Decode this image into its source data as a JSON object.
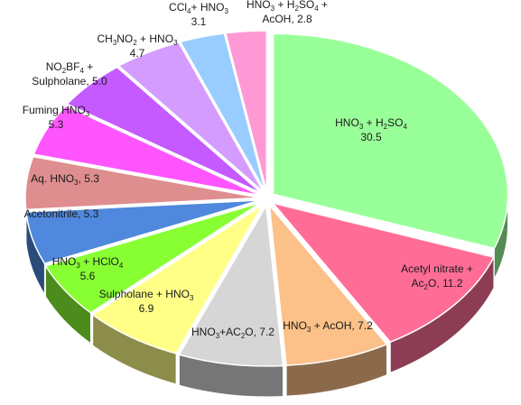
{
  "chart_data": {
    "type": "pie",
    "style": "3d-exploded-pie",
    "slices": [
      {
        "label": "HNO3 + H2SO4",
        "label_lines": [
          [
            "HNO",
            {
              "sub": "3"
            },
            " + H",
            {
              "sub": "2"
            },
            "SO",
            {
              "sub": "4"
            }
          ],
          [
            "30.5"
          ]
        ],
        "value": 30.5,
        "color": "#99ff99"
      },
      {
        "label": "Acetyl nitrate + Ac2O, 11.2",
        "label_lines": [
          [
            "Acetyl nitrate +"
          ],
          [
            "Ac",
            {
              "sub": "2"
            },
            "O, 11.2"
          ]
        ],
        "value": 11.2,
        "color": "#ff6d97"
      },
      {
        "label": "HNO3 + AcOH, 7.2",
        "label_lines": [
          [
            "HNO",
            {
              "sub": "3"
            },
            " + AcOH, 7.2"
          ]
        ],
        "value": 7.2,
        "color": "#fcc089"
      },
      {
        "label": "HNO3+AC2O, 7.2",
        "label_lines": [
          [
            "HNO",
            {
              "sub": "3"
            },
            "+AC",
            {
              "sub": "2"
            },
            "O, 7.2"
          ]
        ],
        "value": 7.2,
        "color": "#d6d6d6"
      },
      {
        "label": "Sulpholane + HNO3 6.9",
        "label_lines": [
          [
            "Sulpholane + HNO",
            {
              "sub": "3"
            }
          ],
          [
            "6.9"
          ]
        ],
        "value": 6.9,
        "color": "#ffff88"
      },
      {
        "label": "HNO3 + HClO4 5.6",
        "label_lines": [
          [
            "HNO",
            {
              "sub": "3"
            },
            " + HClO",
            {
              "sub": "4"
            }
          ],
          [
            "5.6"
          ]
        ],
        "value": 5.6,
        "color": "#88ff33"
      },
      {
        "label": "Acetonitrile, 5.3",
        "label_lines": [
          [
            "Acetonitrile, 5.3"
          ]
        ],
        "value": 5.3,
        "color": "#4f88dc"
      },
      {
        "label": "Aq. HNO3, 5.3",
        "label_lines": [
          [
            "Aq. HNO",
            {
              "sub": "3"
            },
            ", 5.3"
          ]
        ],
        "value": 5.3,
        "color": "#de8e8e"
      },
      {
        "label": "Fuming HNO3 5.3",
        "label_lines": [
          [
            "Fuming HNO",
            {
              "sub": "3"
            }
          ],
          [
            "5.3"
          ]
        ],
        "value": 5.3,
        "color": "#ff55ff"
      },
      {
        "label": "NO2BF4 + Sulpholane, 5.0",
        "label_lines": [
          [
            "NO",
            {
              "sub": "2"
            },
            "BF",
            {
              "sub": "4"
            },
            " +"
          ],
          [
            "Sulpholane, 5.0"
          ]
        ],
        "value": 5.0,
        "color": "#c45aff"
      },
      {
        "label": "CH3NO2 + HNO3 4.7",
        "label_lines": [
          [
            "CH",
            {
              "sub": "3"
            },
            "NO",
            {
              "sub": "2"
            },
            " + HNO",
            {
              "sub": "3"
            }
          ],
          [
            "4.7"
          ]
        ],
        "value": 4.7,
        "color": "#d59cff"
      },
      {
        "label": "CCl4 + HNO3 3.1",
        "label_lines": [
          [
            "CCl",
            {
              "sub": "4"
            },
            "+ HNO",
            {
              "sub": "3"
            }
          ],
          [
            "3.1"
          ]
        ],
        "value": 3.1,
        "color": "#99ccff"
      },
      {
        "label": "HNO3 + H2SO4 + AcOH, 2.8",
        "label_lines": [
          [
            "HNO",
            {
              "sub": "3"
            },
            " + H",
            {
              "sub": "2"
            },
            "SO",
            {
              "sub": "4"
            },
            " +"
          ],
          [
            "AcOH, 2.8"
          ]
        ],
        "value": 2.8,
        "color": "#ff99d6"
      }
    ]
  }
}
